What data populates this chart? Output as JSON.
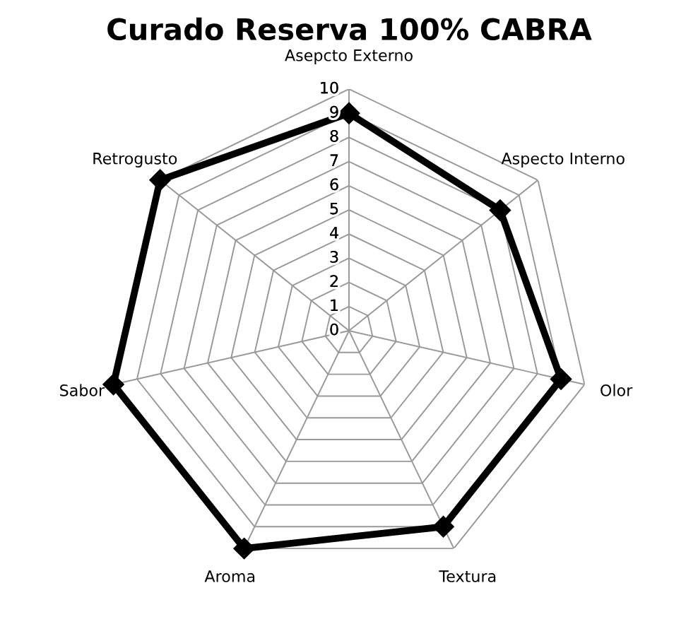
{
  "chart_data": {
    "type": "radar",
    "title": "Curado Reserva 100% CABRA",
    "categories": [
      "Asepcto Externo",
      "Aspecto Interno",
      "Olor",
      "Textura",
      "Aroma",
      "Sabor",
      "Retrogusto"
    ],
    "series": [
      {
        "color": "#000000",
        "values": [
          9,
          8,
          9,
          9,
          10,
          10,
          10
        ]
      }
    ],
    "ylim": [
      0,
      10
    ],
    "yticks": [
      0,
      1,
      2,
      3,
      4,
      5,
      6,
      7,
      8,
      9,
      10
    ],
    "grid": true,
    "marker": "diamond"
  }
}
